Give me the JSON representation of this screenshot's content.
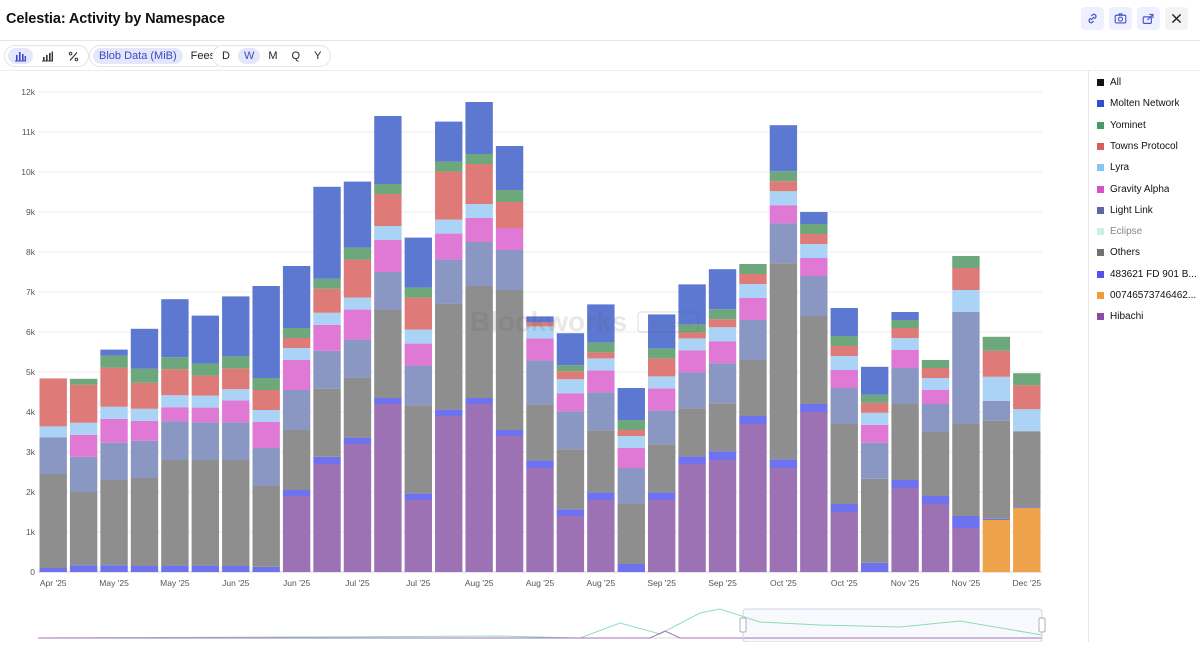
{
  "header": {
    "title": "Celestia: Activity by Namespace"
  },
  "toolbar": {
    "metrics": [
      "Blob Data (MiB)",
      "Fees"
    ],
    "active_metric": "Blob Data (MiB)",
    "periods": [
      "D",
      "W",
      "M",
      "Q",
      "Y"
    ],
    "active_period": "W"
  },
  "watermark": "Blockworks",
  "watermark_badge": "Research",
  "colors": {
    "Hibachi": "#9d72b4",
    "0074657374646": "#eea24a",
    "483621 FD 901 B": "#6f72ee",
    "Others": "#8e8e8e",
    "Eclipse": "#d9f7ec",
    "Light Link": "#8b97c3",
    "Gravity Alpha": "#e078d6",
    "Lyra": "#aad3f5",
    "Towns Protocol": "#de7b79",
    "Yominet": "#6da77c",
    "Molten Network": "#5d78d1"
  },
  "legend": [
    {
      "label": "All",
      "color": "#111111"
    },
    {
      "label": "Molten Network",
      "color": "#2e4fcf"
    },
    {
      "label": "Yominet",
      "color": "#4c9a63"
    },
    {
      "label": "Towns Protocol",
      "color": "#d45f5c"
    },
    {
      "label": "Lyra",
      "color": "#86c4f2"
    },
    {
      "label": "Gravity Alpha",
      "color": "#d451c8"
    },
    {
      "label": "Light Link",
      "color": "#5a6b9e"
    },
    {
      "label": "Eclipse",
      "color": "#c8f2e2"
    },
    {
      "label": "Others",
      "color": "#707070"
    },
    {
      "label": "483621 FD 901 B...",
      "color": "#5054e8"
    },
    {
      "label": "00746573746462...",
      "color": "#ee9b3a"
    },
    {
      "label": "Hibachi",
      "color": "#8a4aa6"
    }
  ],
  "chart_data": {
    "type": "bar",
    "stacked": true,
    "title": "Celestia: Activity by Namespace",
    "ylabel": "Blob Data (MiB)",
    "ylim": [
      0,
      12000
    ],
    "yticks": [
      "0",
      "1k",
      "2k",
      "3k",
      "4k",
      "5k",
      "6k",
      "7k",
      "8k",
      "9k",
      "10k",
      "11k",
      "12k"
    ],
    "categories": [
      "Apr '25",
      "Apr '25",
      "May '25",
      "May '25",
      "May '25",
      "May '25",
      "Jun '25",
      "Jun '25",
      "Jun '25",
      "Jun '25",
      "Jul '25",
      "Jul '25",
      "Jul '25",
      "Jul '25",
      "Aug '25",
      "Aug '25",
      "Aug '25",
      "Aug '25",
      "Aug '25",
      "Sep '25",
      "Sep '25",
      "Sep '25",
      "Sep '25",
      "Oct '25",
      "Oct '25",
      "Oct '25",
      "Oct '25",
      "Nov '25",
      "Nov '25",
      "Nov '25",
      "Nov '25",
      "Dec '25",
      "Dec '25"
    ],
    "xtick_labels": [
      "Apr '25",
      "May '25",
      "May '25",
      "Jun '25",
      "Jun '25",
      "Jul '25",
      "Jul '25",
      "Aug '25",
      "Aug '25",
      "Aug '25",
      "Sep '25",
      "Sep '25",
      "Oct '25",
      "Oct '25",
      "Nov '25",
      "Nov '25",
      "Dec '25"
    ],
    "xtick_index": [
      0,
      2,
      4,
      6,
      8,
      10,
      12,
      14,
      16,
      18,
      20,
      22,
      24,
      26,
      28,
      30,
      32
    ],
    "series": [
      {
        "name": "Hibachi",
        "values": [
          0,
          0,
          0,
          0,
          0,
          0,
          0,
          0,
          1900,
          2700,
          3200,
          4200,
          1800,
          3900,
          4200,
          3400,
          2600,
          1400,
          1800,
          0,
          1800,
          2700,
          2800,
          3700,
          2600,
          4000,
          1500,
          0,
          2100,
          1700,
          1100,
          0,
          0
        ]
      },
      {
        "name": "0074657374646",
        "values": [
          0,
          0,
          0,
          0,
          0,
          0,
          0,
          0,
          0,
          0,
          0,
          0,
          0,
          0,
          0,
          0,
          0,
          0,
          0,
          0,
          0,
          0,
          0,
          0,
          0,
          0,
          0,
          0,
          0,
          0,
          0,
          1300,
          1600
        ]
      },
      {
        "name": "483621 FD 901 B",
        "values": [
          100,
          170,
          170,
          150,
          160,
          160,
          150,
          130,
          150,
          180,
          160,
          150,
          160,
          160,
          150,
          150,
          190,
          170,
          190,
          200,
          190,
          190,
          220,
          200,
          220,
          200,
          200,
          230,
          200,
          200,
          300,
          30,
          20
        ]
      },
      {
        "name": "Others",
        "values": [
          2350,
          1830,
          2130,
          2200,
          2640,
          2640,
          2650,
          2020,
          1500,
          1700,
          1500,
          2200,
          2200,
          2650,
          2800,
          3500,
          1400,
          1500,
          1550,
          1500,
          1200,
          1200,
          1200,
          1400,
          4900,
          2200,
          2000,
          2100,
          1900,
          1600,
          2300,
          2450,
          1900
        ]
      },
      {
        "name": "Eclipse",
        "values": [
          0,
          0,
          0,
          0,
          0,
          0,
          0,
          0,
          0,
          0,
          0,
          0,
          0,
          0,
          0,
          0,
          0,
          0,
          0,
          0,
          0,
          0,
          0,
          0,
          0,
          0,
          0,
          0,
          0,
          0,
          0,
          0,
          0
        ]
      },
      {
        "name": "Light Link",
        "values": [
          920,
          880,
          930,
          930,
          970,
          940,
          940,
          950,
          1000,
          950,
          950,
          950,
          1000,
          1100,
          1100,
          1000,
          1100,
          950,
          950,
          900,
          850,
          900,
          1000,
          1000,
          1000,
          1000,
          900,
          900,
          900,
          700,
          2800,
          500,
          0
        ]
      },
      {
        "name": "Gravity Alpha",
        "values": [
          0,
          550,
          600,
          500,
          350,
          370,
          550,
          650,
          750,
          650,
          750,
          800,
          550,
          650,
          600,
          550,
          550,
          450,
          550,
          500,
          550,
          550,
          550,
          550,
          450,
          450,
          450,
          450,
          450,
          350,
          0,
          0,
          0
        ]
      },
      {
        "name": "Lyra",
        "values": [
          270,
          300,
          300,
          300,
          300,
          300,
          280,
          300,
          300,
          300,
          300,
          350,
          350,
          350,
          350,
          0,
          300,
          350,
          300,
          300,
          300,
          300,
          350,
          350,
          350,
          350,
          350,
          300,
          300,
          300,
          550,
          600,
          550
        ]
      },
      {
        "name": "Towns Protocol",
        "values": [
          1200,
          950,
          980,
          650,
          650,
          500,
          520,
          500,
          250,
          600,
          950,
          800,
          800,
          1200,
          1000,
          650,
          100,
          200,
          150,
          150,
          450,
          150,
          200,
          250,
          250,
          250,
          250,
          250,
          250,
          250,
          550,
          650,
          600
        ]
      },
      {
        "name": "Yominet",
        "values": [
          0,
          150,
          300,
          350,
          300,
          300,
          300,
          300,
          250,
          250,
          300,
          250,
          250,
          250,
          250,
          300,
          0,
          150,
          250,
          250,
          250,
          200,
          250,
          250,
          250,
          250,
          250,
          200,
          200,
          200,
          300,
          350,
          300
        ]
      },
      {
        "name": "Molten Network",
        "values": [
          0,
          0,
          150,
          1000,
          1450,
          1200,
          1500,
          2300,
          1550,
          2300,
          1650,
          1700,
          1250,
          1000,
          1300,
          1100,
          150,
          800,
          950,
          800,
          850,
          1000,
          1000,
          0,
          1150,
          300,
          700,
          700,
          200,
          0,
          0,
          0,
          0
        ]
      }
    ]
  }
}
